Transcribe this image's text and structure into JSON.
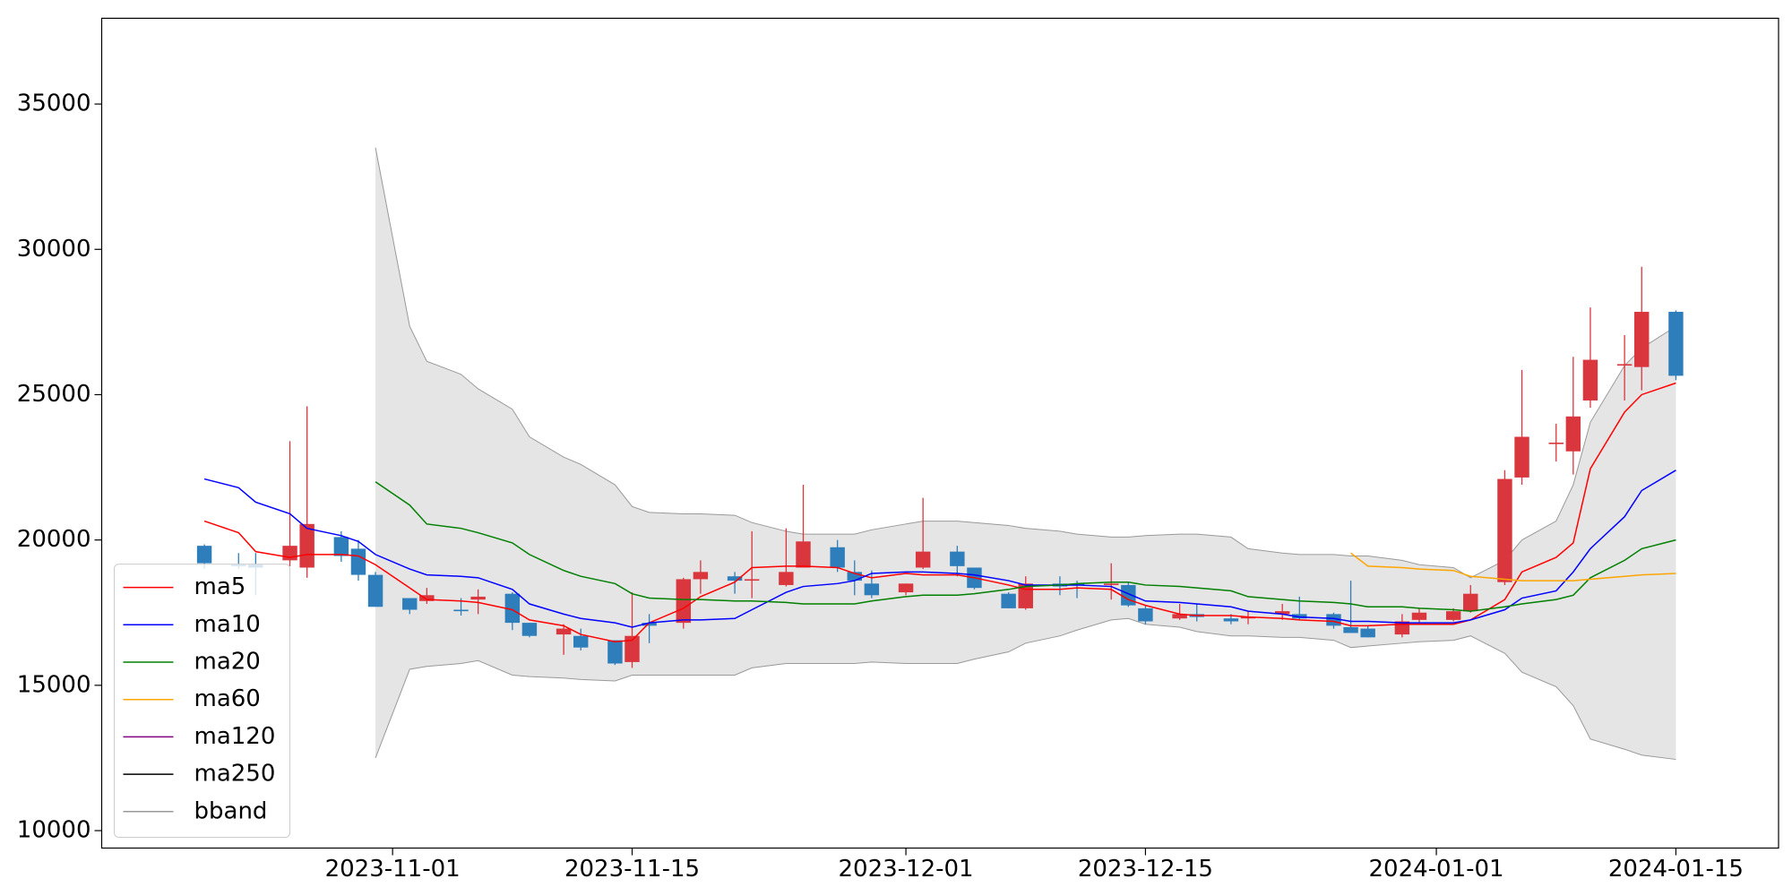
{
  "chart_data": {
    "type": "candlestick",
    "x": [
      "2023-10-21",
      "2023-10-23",
      "2023-10-24",
      "2023-10-26",
      "2023-10-27",
      "2023-10-29",
      "2023-10-30",
      "2023-10-31",
      "2023-11-02",
      "2023-11-03",
      "2023-11-05",
      "2023-11-06",
      "2023-11-08",
      "2023-11-09",
      "2023-11-11",
      "2023-11-12",
      "2023-11-14",
      "2023-11-15",
      "2023-11-16",
      "2023-11-18",
      "2023-11-19",
      "2023-11-21",
      "2023-11-22",
      "2023-11-24",
      "2023-11-25",
      "2023-11-27",
      "2023-11-28",
      "2023-11-29",
      "2023-12-01",
      "2023-12-02",
      "2023-12-04",
      "2023-12-05",
      "2023-12-07",
      "2023-12-08",
      "2023-12-10",
      "2023-12-11",
      "2023-12-13",
      "2023-12-14",
      "2023-12-15",
      "2023-12-17",
      "2023-12-18",
      "2023-12-20",
      "2023-12-21",
      "2023-12-23",
      "2023-12-24",
      "2023-12-26",
      "2023-12-27",
      "2023-12-28",
      "2023-12-30",
      "2023-12-31",
      "2024-01-02",
      "2024-01-03",
      "2024-01-05",
      "2024-01-06",
      "2024-01-08",
      "2024-01-09",
      "2024-01-10",
      "2024-01-12",
      "2024-01-13",
      "2024-01-15"
    ],
    "ohlc": {
      "open": [
        19800,
        19150,
        19150,
        19300,
        19050,
        20100,
        19700,
        18800,
        18000,
        17900,
        17600,
        17950,
        18150,
        17150,
        16750,
        16700,
        16550,
        15800,
        17150,
        17150,
        18650,
        18750,
        18600,
        18450,
        19050,
        19750,
        18900,
        18500,
        18200,
        19050,
        19600,
        19050,
        18150,
        17650,
        18500,
        18500,
        18450,
        18450,
        17650,
        17300,
        17450,
        17300,
        17300,
        17450,
        17450,
        17450,
        17000,
        16950,
        16750,
        17250,
        17250,
        17550,
        18550,
        22150,
        23300,
        23050,
        24800,
        26000,
        25950,
        27850
      ],
      "high": [
        19850,
        19550,
        19550,
        23400,
        24600,
        20300,
        20000,
        18900,
        18000,
        18350,
        18000,
        18300,
        18200,
        17150,
        17100,
        16950,
        16550,
        18200,
        17450,
        18700,
        19300,
        18900,
        20300,
        20400,
        21900,
        20000,
        19300,
        18950,
        18500,
        21450,
        19800,
        19050,
        18200,
        18750,
        18750,
        18600,
        19200,
        18550,
        17750,
        17800,
        17800,
        17450,
        17550,
        17800,
        18050,
        17500,
        18600,
        17050,
        17450,
        17650,
        17650,
        18450,
        22400,
        25850,
        24000,
        26300,
        28000,
        27050,
        29400,
        27900
      ],
      "low": [
        19000,
        19000,
        18100,
        19100,
        18700,
        19250,
        18600,
        17700,
        17450,
        17800,
        17400,
        17450,
        16900,
        16650,
        16050,
        16200,
        15700,
        15600,
        16450,
        16950,
        18150,
        18150,
        18000,
        18400,
        19050,
        18900,
        18100,
        18000,
        18100,
        19000,
        18750,
        18300,
        17650,
        17600,
        18100,
        18000,
        17950,
        17700,
        17100,
        17250,
        17200,
        17100,
        17100,
        17250,
        17250,
        16950,
        16800,
        16650,
        16650,
        17150,
        17200,
        17500,
        18450,
        21900,
        22700,
        22250,
        24550,
        24800,
        25150,
        25500
      ],
      "close": [
        19200,
        19100,
        19050,
        19800,
        20550,
        19450,
        18800,
        17700,
        17600,
        18100,
        17550,
        18050,
        17150,
        16700,
        16950,
        16300,
        15750,
        16700,
        17050,
        18650,
        18900,
        18600,
        18650,
        18900,
        19950,
        19050,
        18600,
        18100,
        18500,
        19600,
        19100,
        18350,
        17650,
        18500,
        18400,
        18450,
        18500,
        17750,
        17200,
        17450,
        17350,
        17200,
        17350,
        17550,
        17300,
        17050,
        16800,
        16650,
        17200,
        17500,
        17550,
        18150,
        22100,
        23550,
        23350,
        24250,
        26200,
        26050,
        27850,
        25650
      ]
    },
    "up_color": "#d9363e",
    "down_color": "#2e7ebc",
    "series": [
      {
        "name": "ma5",
        "color": "red",
        "values": [
          20650,
          20250,
          19600,
          19400,
          19500,
          19500,
          19450,
          19150,
          18350,
          17950,
          17900,
          17850,
          17600,
          17250,
          17050,
          16750,
          16500,
          16550,
          17150,
          17650,
          18050,
          18550,
          19050,
          19100,
          19100,
          19050,
          18850,
          18700,
          18850,
          18800,
          18800,
          18700,
          18450,
          18300,
          18300,
          18350,
          18300,
          17950,
          17750,
          17450,
          17400,
          17400,
          17350,
          17300,
          17250,
          17200,
          17050,
          17050,
          17100,
          17100,
          17100,
          17250,
          17950,
          18900,
          19400,
          19900,
          22450,
          24400,
          25000,
          25400
        ]
      },
      {
        "name": "ma10",
        "color": "blue",
        "values": [
          22100,
          21800,
          21300,
          20900,
          20400,
          20150,
          19950,
          19500,
          19000,
          18800,
          18750,
          18700,
          18300,
          17800,
          17450,
          17300,
          17150,
          17000,
          17150,
          17250,
          17250,
          17300,
          17600,
          18200,
          18400,
          18500,
          18600,
          18850,
          18900,
          18900,
          18850,
          18800,
          18600,
          18450,
          18450,
          18450,
          18400,
          18150,
          17900,
          17850,
          17800,
          17700,
          17550,
          17450,
          17350,
          17300,
          17200,
          17200,
          17150,
          17150,
          17150,
          17250,
          17600,
          18000,
          18250,
          18900,
          19700,
          20800,
          21700,
          22400
        ]
      },
      {
        "name": "ma20",
        "color": "green",
        "values": [
          null,
          null,
          null,
          null,
          null,
          null,
          null,
          22000,
          21200,
          20550,
          20400,
          20250,
          19900,
          19500,
          18950,
          18750,
          18500,
          18150,
          18000,
          17950,
          17950,
          17900,
          17900,
          17850,
          17800,
          17800,
          17800,
          17900,
          18050,
          18100,
          18100,
          18150,
          18300,
          18400,
          18450,
          18500,
          18550,
          18550,
          18450,
          18400,
          18350,
          18250,
          18050,
          17950,
          17900,
          17850,
          17800,
          17700,
          17700,
          17650,
          17600,
          17550,
          17700,
          17800,
          17950,
          18100,
          18700,
          19300,
          19700,
          20000
        ]
      },
      {
        "name": "ma60",
        "color": "orange",
        "values": [
          null,
          null,
          null,
          null,
          null,
          null,
          null,
          null,
          null,
          null,
          null,
          null,
          null,
          null,
          null,
          null,
          null,
          null,
          null,
          null,
          null,
          null,
          null,
          null,
          null,
          null,
          null,
          null,
          null,
          null,
          null,
          null,
          null,
          null,
          null,
          null,
          null,
          null,
          null,
          null,
          null,
          null,
          null,
          null,
          null,
          null,
          19550,
          19100,
          19050,
          19000,
          18950,
          18750,
          18650,
          18600,
          18600,
          18600,
          18650,
          18750,
          18800,
          18850
        ]
      },
      {
        "name": "ma120",
        "color": "purple",
        "values": [
          null,
          null,
          null,
          null,
          null,
          null,
          null,
          null,
          null,
          null,
          null,
          null,
          null,
          null,
          null,
          null,
          null,
          null,
          null,
          null,
          null,
          null,
          null,
          null,
          null,
          null,
          null,
          null,
          null,
          null,
          null,
          null,
          null,
          null,
          null,
          null,
          null,
          null,
          null,
          null,
          null,
          null,
          null,
          null,
          null,
          null,
          null,
          null,
          null,
          null,
          null,
          null,
          null,
          null,
          null,
          null,
          null,
          null,
          null,
          null
        ]
      },
      {
        "name": "ma250",
        "color": "black",
        "values": [
          null,
          null,
          null,
          null,
          null,
          null,
          null,
          null,
          null,
          null,
          null,
          null,
          null,
          null,
          null,
          null,
          null,
          null,
          null,
          null,
          null,
          null,
          null,
          null,
          null,
          null,
          null,
          null,
          null,
          null,
          null,
          null,
          null,
          null,
          null,
          null,
          null,
          null,
          null,
          null,
          null,
          null,
          null,
          null,
          null,
          null,
          null,
          null,
          null,
          null,
          null,
          null,
          null,
          null,
          null,
          null,
          null,
          null,
          null,
          null
        ]
      }
    ],
    "bband": {
      "name": "bband",
      "color": "#999999",
      "fill": "#e5e5e5",
      "upper": [
        null,
        null,
        null,
        null,
        null,
        null,
        null,
        33500,
        27350,
        26150,
        25700,
        25200,
        24500,
        23550,
        22850,
        22600,
        21900,
        21150,
        20950,
        20900,
        20900,
        20850,
        20600,
        20300,
        20200,
        20200,
        20200,
        20350,
        20550,
        20650,
        20650,
        20600,
        20500,
        20400,
        20300,
        20200,
        20100,
        20100,
        20150,
        20200,
        20200,
        20100,
        19700,
        19550,
        19500,
        19500,
        19450,
        19450,
        19300,
        19150,
        19050,
        18700,
        19300,
        20000,
        20650,
        21900,
        24050,
        26000,
        26600,
        27350
      ],
      "lower": [
        null,
        null,
        null,
        null,
        null,
        null,
        null,
        12500,
        15550,
        15650,
        15750,
        15850,
        15350,
        15300,
        15250,
        15200,
        15150,
        15350,
        15350,
        15350,
        15350,
        15350,
        15600,
        15750,
        15750,
        15750,
        15750,
        15800,
        15750,
        15750,
        15750,
        15900,
        16150,
        16450,
        16700,
        16900,
        17250,
        17300,
        17100,
        17000,
        16850,
        16700,
        16700,
        16650,
        16650,
        16550,
        16300,
        16350,
        16450,
        16500,
        16550,
        16700,
        16100,
        15450,
        14950,
        14300,
        13150,
        12800,
        12600,
        12450
      ]
    },
    "xlim": [
      "2023-10-15",
      "2024-01-21"
    ],
    "xticks": [
      "2023-11-01",
      "2023-11-15",
      "2023-12-01",
      "2023-12-15",
      "2024-01-01",
      "2024-01-15"
    ],
    "ylim": [
      9400,
      37950
    ],
    "yticks": [
      10000,
      15000,
      20000,
      25000,
      30000,
      35000
    ],
    "legend": "lower left"
  }
}
